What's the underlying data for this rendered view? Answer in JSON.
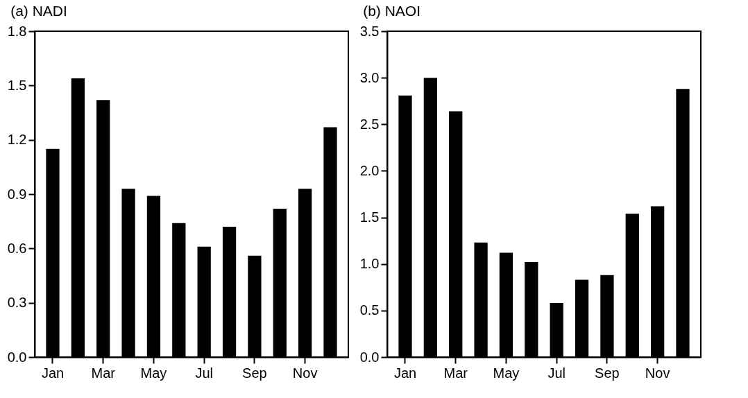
{
  "chart_data": [
    {
      "type": "bar",
      "title": "(a) NADI",
      "categories": [
        "Jan",
        null,
        "Mar",
        null,
        "May",
        null,
        "Jul",
        null,
        "Sep",
        null,
        "Nov",
        null
      ],
      "values": [
        1.15,
        1.54,
        1.42,
        0.93,
        0.89,
        0.74,
        0.61,
        0.72,
        0.56,
        0.82,
        0.93,
        1.27
      ],
      "color": "#000000",
      "ylim": [
        0,
        1.8
      ],
      "yticks": [
        {
          "value": 0,
          "label": "0.0"
        },
        0.3,
        0.6,
        0.9,
        1.2,
        1.5,
        1.8
      ]
    },
    {
      "type": "bar",
      "title": "(b) NAOI",
      "categories": [
        "Jan",
        null,
        "Mar",
        null,
        "May",
        null,
        "Jul",
        null,
        "Sep",
        null,
        "Nov",
        null
      ],
      "values": [
        2.81,
        3.0,
        2.64,
        1.23,
        1.12,
        1.02,
        0.58,
        0.83,
        0.88,
        1.54,
        1.62,
        2.88
      ],
      "color": "#000000",
      "ylim": [
        0,
        3.5
      ],
      "yticks": [
        {
          "value": 0,
          "label": "0.0"
        },
        0.5,
        {
          "value": 1,
          "label": "1.0"
        },
        1.5,
        {
          "value": 2,
          "label": "2.0"
        },
        2.5,
        {
          "value": 3,
          "label": "3.0"
        },
        3.5
      ]
    }
  ]
}
